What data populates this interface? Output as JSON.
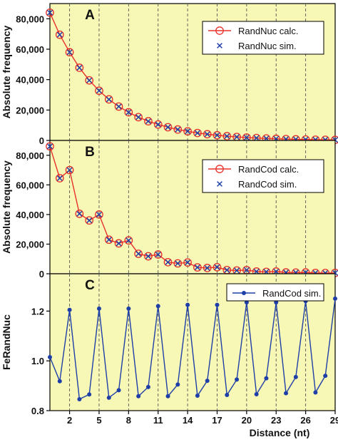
{
  "chart_data": [
    {
      "panel": "A",
      "type": "line",
      "ylabel": "Absolute frequency",
      "ylim": [
        0,
        90000
      ],
      "yticks": [
        0,
        20000,
        40000,
        60000,
        80000
      ],
      "ytick_labels": [
        "0",
        "20,000",
        "40,000",
        "60,000",
        "80,000"
      ],
      "xlim": [
        0,
        29
      ],
      "grid": "vertical dashed",
      "legend_position": "top-right",
      "x": [
        0,
        1,
        2,
        3,
        4,
        5,
        6,
        7,
        8,
        9,
        10,
        11,
        12,
        13,
        14,
        15,
        16,
        17,
        18,
        19,
        20,
        21,
        22,
        23,
        24,
        25,
        26,
        27,
        28,
        29
      ],
      "series": [
        {
          "name": "RandNuc calc.",
          "marker": "circle",
          "color": "#e8302a",
          "line": true,
          "values": [
            84000,
            69500,
            58000,
            47800,
            39500,
            32700,
            27000,
            22300,
            18500,
            15300,
            12600,
            10500,
            8700,
            7200,
            6000,
            4900,
            4100,
            3400,
            2800,
            2300,
            1900,
            1600,
            1300,
            1100,
            900,
            750,
            600,
            500,
            420,
            350
          ]
        },
        {
          "name": "RandNuc sim.",
          "marker": "x",
          "color": "#1f3fa8",
          "line": false,
          "values": [
            84000,
            69500,
            58000,
            47800,
            39500,
            32700,
            27000,
            22300,
            18500,
            15300,
            12600,
            10500,
            8700,
            7200,
            6000,
            4900,
            4100,
            3400,
            2800,
            2300,
            1900,
            1600,
            1300,
            1100,
            900,
            750,
            600,
            500,
            420,
            350
          ]
        }
      ]
    },
    {
      "panel": "B",
      "type": "line",
      "ylabel": "Absolute frequency",
      "ylim": [
        0,
        90000
      ],
      "yticks": [
        0,
        20000,
        40000,
        60000,
        80000
      ],
      "ytick_labels": [
        "0",
        "20,000",
        "40,000",
        "60,000",
        "80,000"
      ],
      "xlim": [
        0,
        29
      ],
      "grid": "vertical dashed",
      "legend_position": "top-right",
      "x": [
        0,
        1,
        2,
        3,
        4,
        5,
        6,
        7,
        8,
        9,
        10,
        11,
        12,
        13,
        14,
        15,
        16,
        17,
        18,
        19,
        20,
        21,
        22,
        23,
        24,
        25,
        26,
        27,
        28,
        29
      ],
      "series": [
        {
          "name": "RandCod calc.",
          "marker": "circle",
          "color": "#e8302a",
          "line": true,
          "values": [
            86000,
            64500,
            70000,
            40500,
            36000,
            40000,
            23000,
            20500,
            22500,
            13500,
            11800,
            13000,
            7800,
            7000,
            7600,
            4300,
            3900,
            4400,
            2500,
            2200,
            2500,
            1500,
            1300,
            1500,
            900,
            800,
            900,
            550,
            500,
            550
          ]
        },
        {
          "name": "RandCod sim.",
          "marker": "x",
          "color": "#1f3fa8",
          "line": false,
          "values": [
            86000,
            64500,
            70000,
            40500,
            36000,
            40000,
            23000,
            20500,
            22500,
            13500,
            11800,
            13000,
            7800,
            7000,
            7600,
            4300,
            3900,
            4400,
            2500,
            2200,
            2500,
            1500,
            1300,
            1500,
            900,
            800,
            900,
            550,
            500,
            550
          ]
        }
      ]
    },
    {
      "panel": "C",
      "type": "line",
      "ylabel": "FeRandNuc",
      "xlabel": "Distance (nt)",
      "ylim": [
        0.8,
        1.35
      ],
      "yticks": [
        0.8,
        1.0,
        1.2
      ],
      "ytick_labels": [
        "0.8",
        "1.0",
        "1.2"
      ],
      "xlim": [
        0,
        29
      ],
      "xticks": [
        2,
        5,
        8,
        11,
        14,
        17,
        20,
        23,
        26,
        29
      ],
      "grid": "vertical dashed",
      "legend_position": "top-right",
      "x": [
        0,
        1,
        2,
        3,
        4,
        5,
        6,
        7,
        8,
        9,
        10,
        11,
        12,
        13,
        14,
        15,
        16,
        17,
        18,
        19,
        20,
        21,
        22,
        23,
        24,
        25,
        26,
        27,
        28,
        29
      ],
      "series": [
        {
          "name": "RandCod sim.",
          "marker": "dot",
          "color": "#1f3fa8",
          "line": true,
          "values": [
            1.015,
            0.918,
            1.205,
            0.846,
            0.865,
            1.21,
            0.852,
            0.882,
            1.21,
            0.858,
            0.895,
            1.22,
            0.858,
            0.905,
            1.225,
            0.86,
            0.92,
            1.225,
            0.863,
            0.925,
            1.235,
            0.866,
            0.93,
            1.235,
            0.87,
            0.935,
            1.24,
            0.873,
            0.94,
            1.25
          ]
        }
      ]
    }
  ],
  "colors": {
    "plot_background": "#f7f7b6",
    "calc_series": "#e8302a",
    "sim_series": "#1f3fa8",
    "grid": "#555555"
  }
}
